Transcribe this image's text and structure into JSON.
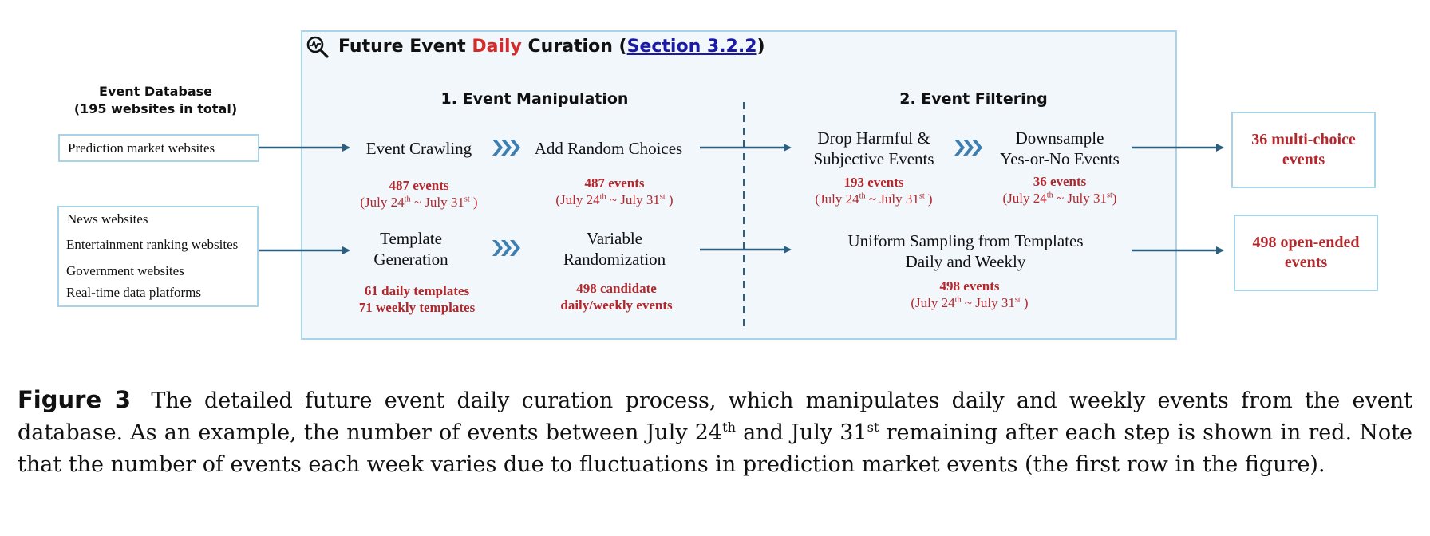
{
  "figure": {
    "title_prefix": "Future Event ",
    "title_highlight": "Daily",
    "title_mid": " Curation (",
    "title_link": "Section 3.2.2",
    "title_suffix": ")",
    "colors": {
      "accent_red": "#b3282d",
      "box_border": "#a9d3e6",
      "box_fill": "#f2f7fc",
      "arrow": "#2a5f80",
      "link": "#1a1aa6"
    }
  },
  "database": {
    "title": "Event Database",
    "subtitle": "(195 websites in total)",
    "box1": [
      "Prediction market websites"
    ],
    "box2": [
      "News websites",
      "Entertainment ranking websites",
      "Government websites",
      "Real-time data platforms"
    ]
  },
  "sections": {
    "manipulation": "1. Event Manipulation",
    "filtering": "2. Event Filtering"
  },
  "row1": {
    "crawl": "Event Crawling",
    "crawl_count": "487 events",
    "crawl_dates": {
      "pre": "(July 24",
      "sup1": "th",
      "mid": " ~ July 31",
      "sup2": "st",
      "post": " )"
    },
    "random": "Add Random Choices",
    "random_count": "487 events",
    "random_dates": {
      "pre": "(July 24",
      "sup1": "th",
      "mid": " ~ July 31",
      "sup2": "st",
      "post": " )"
    },
    "drop_line1": "Drop Harmful &",
    "drop_line2": "Subjective Events",
    "drop_count": "193 events",
    "drop_dates": {
      "pre": "(July 24",
      "sup1": "th",
      "mid": " ~ July 31",
      "sup2": "st",
      "post": " )"
    },
    "down_line1": "Downsample",
    "down_line2": "Yes-or-No Events",
    "down_count": "36 events",
    "down_dates": {
      "pre": "(July 24",
      "sup1": "th",
      "mid": " ~ July 31",
      "sup2": "st",
      "post": ")"
    },
    "output": "36 multi-choice events"
  },
  "row2": {
    "template_line1": "Template",
    "template_line2": "Generation",
    "template_daily": "61 daily templates",
    "template_weekly": "71 weekly templates",
    "variable_line1": "Variable",
    "variable_line2": "Randomization",
    "variable_count1": "498 candidate",
    "variable_count2": "daily/weekly events",
    "uniform_line1": "Uniform Sampling from Templates",
    "uniform_line2": "Daily and Weekly",
    "uniform_count": "498 events",
    "uniform_dates": {
      "pre": "(July 24",
      "sup1": "th",
      "mid": " ~ July 31",
      "sup2": "st",
      "post": " )"
    },
    "output": "498 open-ended events"
  },
  "caption": {
    "label": "Figure 3",
    "text_a": "The detailed future event daily curation process, which manipulates daily and weekly events from the event database. As an example, the number of events between July 24",
    "sup_a": "th",
    "text_b": " and July 31",
    "sup_b": "st",
    "text_c": " remaining after each step is shown in red. Note that the number of events each week varies due to fluctuations in prediction market events (the first row in the figure)."
  }
}
